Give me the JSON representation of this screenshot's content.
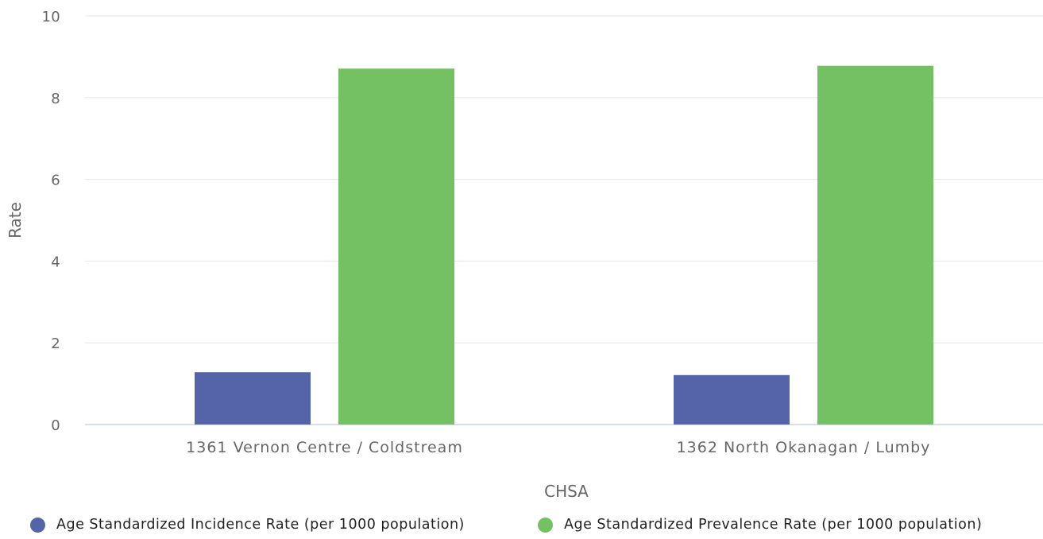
{
  "chart_data": {
    "type": "bar",
    "categories": [
      "1361 Vernon Centre / Coldstream",
      "1362 North Okanagan / Lumby"
    ],
    "series": [
      {
        "name": "Age Standardized Incidence Rate (per 1000 population)",
        "values": [
          1.28,
          1.21
        ],
        "color": "#5563a8"
      },
      {
        "name": "Age Standardized Prevalence Rate (per 1000 population)",
        "values": [
          8.71,
          8.78
        ],
        "color": "#73c163"
      }
    ],
    "xlabel": "CHSA",
    "ylabel": "Rate",
    "ylim": [
      0,
      10
    ],
    "yticks": [
      "0",
      "2",
      "4",
      "6",
      "8",
      "10"
    ],
    "grid": true,
    "legend_position": "bottom"
  }
}
